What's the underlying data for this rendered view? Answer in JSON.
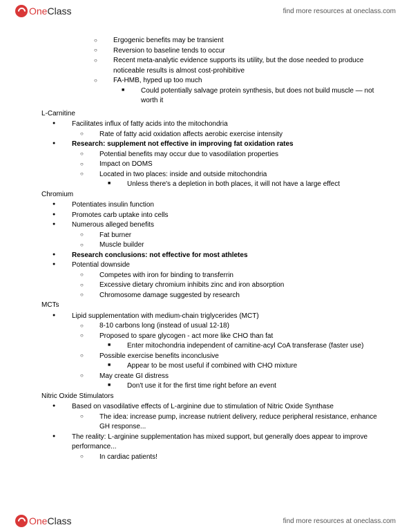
{
  "brand": {
    "one": "One",
    "class": "Class"
  },
  "tagline": "find more resources at oneclass.com",
  "top": {
    "i1": "Ergogenic benefits may be transient",
    "i2": "Reversion to baseline tends to occur",
    "i3": "Recent meta-analytic evidence supports its utility, but the dose needed to produce noticeable results is almost cost-prohibitive",
    "i4": "FA-HMB, hyped up too much",
    "i4a": "Could potentially salvage protein synthesis, but does not build muscle — not worth it"
  },
  "lcarn": {
    "title": "L-Carnitine",
    "b1": "Facilitates influx of fatty acids into the mitochondria",
    "b1a": "Rate of fatty acid oxidation affects aerobic exercise intensity",
    "b2": "Research: supplement not effective in improving fat oxidation rates",
    "b2a": "Potential benefits may occur due to vasodilation properties",
    "b2b": "Impact on DOMS",
    "b2c": "Located in two places: inside and outside mitochondria",
    "b2c1": "Unless there's a depletion in both places, it will not have a large effect"
  },
  "chrom": {
    "title": "Chromium",
    "b1": "Potentiates insulin function",
    "b2": "Promotes carb uptake into cells",
    "b3": "Numerous alleged benefits",
    "b3a": "Fat burner",
    "b3b": "Muscle builder",
    "b4": "Research conclusions: not effective for most athletes",
    "b5": "Potential downside",
    "b5a": "Competes with iron for binding to transferrin",
    "b5b": "Excessive dietary chromium inhibits zinc and iron absorption",
    "b5c": "Chromosome damage suggested by research"
  },
  "mct": {
    "title": "MCTs",
    "b1": "Lipid supplementation with medium-chain triglycerides (MCT)",
    "b1a": "8-10 carbons long (instead of usual 12-18)",
    "b1b": "Proposed to spare glycogen - act more like CHO than fat",
    "b1b1": "Enter mitochondria independent of carnitine-acyl CoA transferase (faster use)",
    "b1c": "Possible exercise benefits inconclusive",
    "b1c1": "Appear to be most useful if combined with CHO mixture",
    "b1d": "May create GI distress",
    "b1d1": "Don't use it for the first time right before an event"
  },
  "no": {
    "title": "Nitric Oxide Stimulators",
    "b1": "Based on vasodilative effects of L-arginine due to stimulation of Nitric Oxide Synthase",
    "b1a": "The idea: increase pump, increase nutrient delivery, reduce peripheral resistance, enhance GH response...",
    "b2": "The reality: L-arginine supplementation has mixed support, but generally does appear to improve performance...",
    "b2a": "In cardiac patients!"
  }
}
